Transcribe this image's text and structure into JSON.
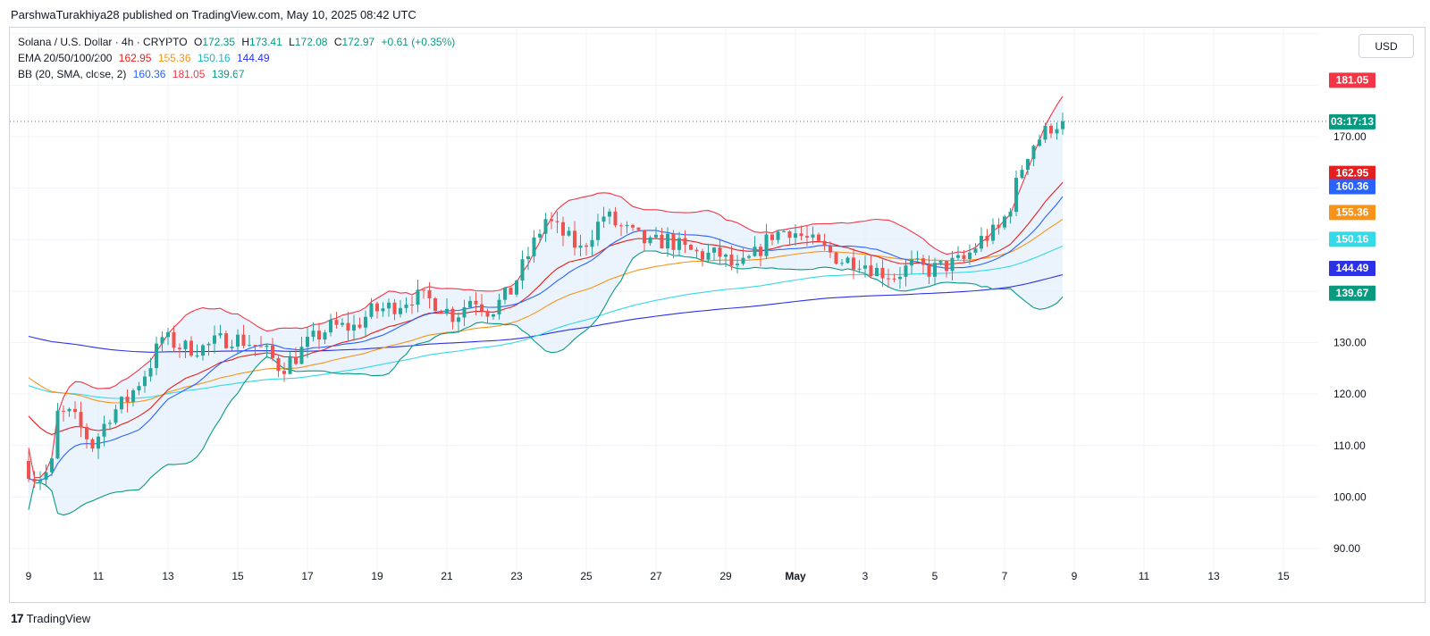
{
  "header": {
    "published": "ParshwaTurakhiya28 published on TradingView.com, May 10, 2025 08:42 UTC"
  },
  "legend": {
    "symbol": "Solana / U.S. Dollar · 4h · CRYPTO",
    "o_label": "O",
    "o": "172.35",
    "h_label": "H",
    "h": "173.41",
    "l_label": "L",
    "l": "172.08",
    "c_label": "C",
    "c": "172.97",
    "change": "+0.61 (+0.35%)",
    "ema_label": "EMA 20/50/100/200",
    "ema20": "162.95",
    "ema50": "155.36",
    "ema100": "150.16",
    "ema200": "144.49",
    "bb_label": "BB (20, SMA, close, 2)",
    "bb_mid": "160.36",
    "bb_up": "181.05",
    "bb_low": "139.67"
  },
  "currency_button": "USD",
  "footer": {
    "brand": "TradingView",
    "logo": "17"
  },
  "colors": {
    "up": "#26a69a",
    "down": "#ef5350",
    "ema20": "#e51e1e",
    "ema50": "#f7931a",
    "ema100": "#35d9e8",
    "ema200": "#2c31e6",
    "bb_mid": "#2962ff",
    "bb_band": "#089981",
    "bb_upper": "#f23645",
    "bb_fill": "#e3f0fb",
    "countdown": "#089981"
  },
  "price_tags": [
    {
      "value": "181.05",
      "color": "#f23645"
    },
    {
      "value": "03:17:13",
      "color": "#089981"
    },
    {
      "value": "162.95",
      "color": "#e51e1e"
    },
    {
      "value": "160.36",
      "color": "#2962ff"
    },
    {
      "value": "155.36",
      "color": "#f7931a"
    },
    {
      "value": "150.16",
      "color": "#35d9e8"
    },
    {
      "value": "144.49",
      "color": "#2c31e6"
    },
    {
      "value": "139.67",
      "color": "#089981"
    }
  ],
  "chart_data": {
    "type": "candlestick",
    "title": "Solana / U.S. Dollar · 4h · CRYPTO",
    "x_range_days": [
      8.75,
      15.2
    ],
    "ylim": [
      87,
      192
    ],
    "y_ticks": [
      "90.00",
      "100.00",
      "110.00",
      "120.00",
      "130.00",
      "170.00"
    ],
    "x_ticks": [
      "9",
      "11",
      "13",
      "15",
      "17",
      "19",
      "21",
      "23",
      "25",
      "27",
      "29",
      "May",
      "3",
      "5",
      "7",
      "9",
      "11",
      "13",
      "15"
    ],
    "last_price": 172.97,
    "grid": true,
    "keypoints": [
      [
        0,
        107
      ],
      [
        0.3,
        104
      ],
      [
        0.6,
        104
      ],
      [
        0.9,
        107
      ],
      [
        1.0,
        116
      ],
      [
        1.4,
        116
      ],
      [
        1.6,
        114
      ],
      [
        2.0,
        110
      ],
      [
        2.5,
        116
      ],
      [
        3.0,
        119
      ],
      [
        3.6,
        125
      ],
      [
        4.0,
        131
      ],
      [
        4.6,
        129
      ],
      [
        5.2,
        129
      ],
      [
        5.5,
        130
      ],
      [
        6.0,
        131
      ],
      [
        6.5,
        130
      ],
      [
        7.0,
        128
      ],
      [
        7.4,
        125
      ],
      [
        7.8,
        127
      ],
      [
        8.2,
        130
      ],
      [
        8.8,
        133
      ],
      [
        9.5,
        133
      ],
      [
        10.0,
        136
      ],
      [
        10.6,
        137
      ],
      [
        11.2,
        139
      ],
      [
        11.8,
        138
      ],
      [
        12.4,
        135
      ],
      [
        12.9,
        139
      ],
      [
        13.4,
        136
      ],
      [
        14.0,
        140
      ],
      [
        14.5,
        147
      ],
      [
        15.0,
        154
      ],
      [
        15.5,
        151
      ],
      [
        16.0,
        148
      ],
      [
        16.7,
        155
      ],
      [
        17.0,
        153
      ],
      [
        17.5,
        151
      ],
      [
        18.0,
        149
      ],
      [
        18.5,
        150
      ],
      [
        19.0,
        148
      ],
      [
        19.5,
        147
      ],
      [
        20.0,
        147
      ],
      [
        20.5,
        144
      ],
      [
        21.0,
        147
      ],
      [
        21.5,
        151
      ],
      [
        22.0,
        152
      ],
      [
        22.5,
        150
      ],
      [
        23.0,
        148
      ],
      [
        23.5,
        146
      ],
      [
        24.0,
        146
      ],
      [
        24.5,
        144
      ],
      [
        25.0,
        143
      ],
      [
        25.5,
        145
      ],
      [
        26.0,
        144
      ],
      [
        26.5,
        145
      ],
      [
        27.0,
        146
      ],
      [
        27.5,
        150
      ],
      [
        28.0,
        152
      ],
      [
        28.3,
        156
      ],
      [
        28.6,
        163
      ],
      [
        28.9,
        168
      ],
      [
        29.2,
        170
      ],
      [
        29.5,
        172
      ],
      [
        29.8,
        172.97
      ]
    ],
    "volatility": 1.8,
    "series_names": [
      "EMA 20",
      "EMA 50",
      "EMA 100",
      "EMA 200",
      "BB basis",
      "BB upper",
      "BB lower"
    ]
  }
}
